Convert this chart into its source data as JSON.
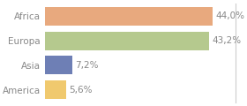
{
  "categories": [
    "Africa",
    "Europa",
    "Asia",
    "America"
  ],
  "values": [
    44.0,
    43.2,
    7.2,
    5.6
  ],
  "labels": [
    "44,0%",
    "43,2%",
    "7,2%",
    "5,6%"
  ],
  "bar_colors": [
    "#e8a97e",
    "#b5c98e",
    "#6e7fb5",
    "#f0c96e"
  ],
  "background_color": "#ffffff",
  "xlim": [
    0,
    50
  ],
  "bar_height": 0.75,
  "label_fontsize": 7.5,
  "tick_fontsize": 7.5,
  "text_color": "#888888",
  "border_color": "#cccccc"
}
